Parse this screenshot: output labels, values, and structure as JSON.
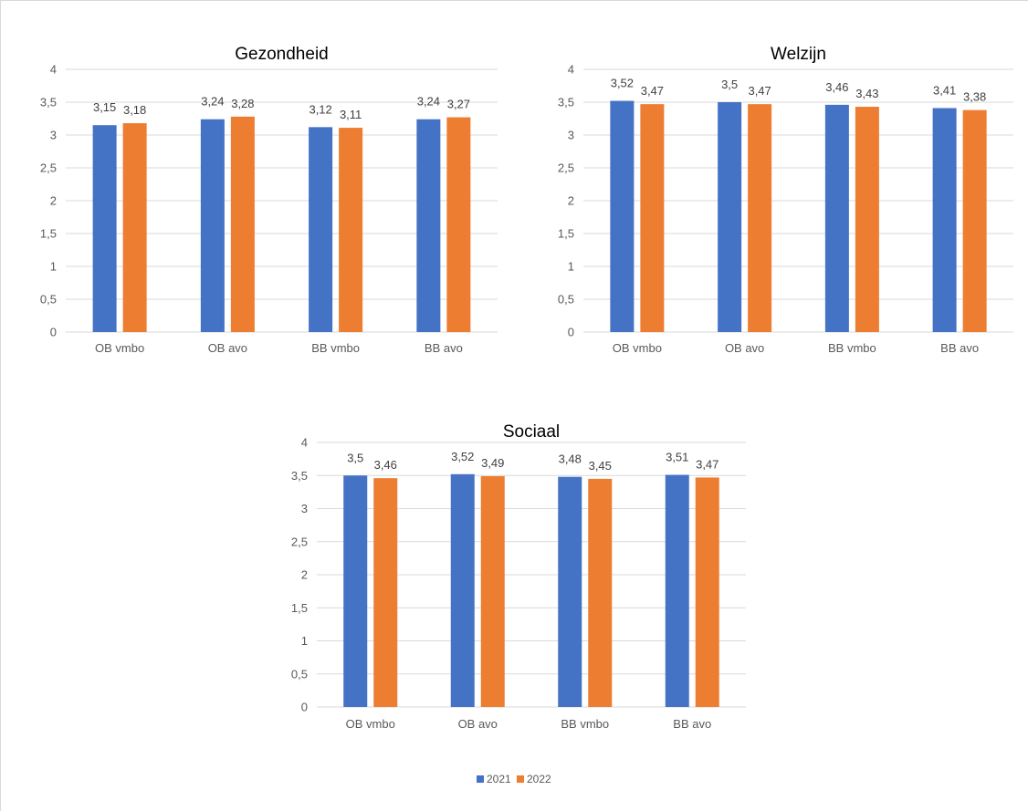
{
  "colors": {
    "series_2021": "#4472C4",
    "series_2022": "#ED7D31",
    "grid": "#d9d9d9",
    "axis_text": "#595959"
  },
  "legend": {
    "items": [
      "2021",
      "2022"
    ],
    "placement": "bottom-center"
  },
  "chart_data": [
    {
      "type": "bar",
      "title": "Gezondheid",
      "categories": [
        "OB vmbo",
        "OB avo",
        "BB vmbo",
        "BB avo"
      ],
      "series": [
        {
          "name": "2021",
          "values": [
            3.15,
            3.24,
            3.12,
            3.24
          ],
          "labels": [
            "3,15",
            "3,24",
            "3,12",
            "3,24"
          ]
        },
        {
          "name": "2022",
          "values": [
            3.18,
            3.28,
            3.11,
            3.27
          ],
          "labels": [
            "3,18",
            "3,28",
            "3,11",
            "3,27"
          ]
        }
      ],
      "ylim": [
        0,
        4
      ],
      "yticks": [
        "0",
        "0,5",
        "1",
        "1,5",
        "2",
        "2,5",
        "3",
        "3,5",
        "4"
      ],
      "grid": true
    },
    {
      "type": "bar",
      "title": "Welzijn",
      "categories": [
        "OB vmbo",
        "OB avo",
        "BB vmbo",
        "BB avo"
      ],
      "series": [
        {
          "name": "2021",
          "values": [
            3.52,
            3.5,
            3.46,
            3.41
          ],
          "labels": [
            "3,52",
            "3,5",
            "3,46",
            "3,41"
          ]
        },
        {
          "name": "2022",
          "values": [
            3.47,
            3.47,
            3.43,
            3.38
          ],
          "labels": [
            "3,47",
            "3,47",
            "3,43",
            "3,38"
          ]
        }
      ],
      "ylim": [
        0,
        4
      ],
      "yticks": [
        "0",
        "0,5",
        "1",
        "1,5",
        "2",
        "2,5",
        "3",
        "3,5",
        "4"
      ],
      "grid": true
    },
    {
      "type": "bar",
      "title": "Sociaal",
      "categories": [
        "OB vmbo",
        "OB avo",
        "BB vmbo",
        "BB avo"
      ],
      "series": [
        {
          "name": "2021",
          "values": [
            3.5,
            3.52,
            3.48,
            3.51
          ],
          "labels": [
            "3,5",
            "3,52",
            "3,48",
            "3,51"
          ]
        },
        {
          "name": "2022",
          "values": [
            3.46,
            3.49,
            3.45,
            3.47
          ],
          "labels": [
            "3,46",
            "3,49",
            "3,45",
            "3,47"
          ]
        }
      ],
      "ylim": [
        0,
        4
      ],
      "yticks": [
        "0",
        "0,5",
        "1",
        "1,5",
        "2",
        "2,5",
        "3",
        "3,5",
        "4"
      ],
      "grid": true
    }
  ]
}
